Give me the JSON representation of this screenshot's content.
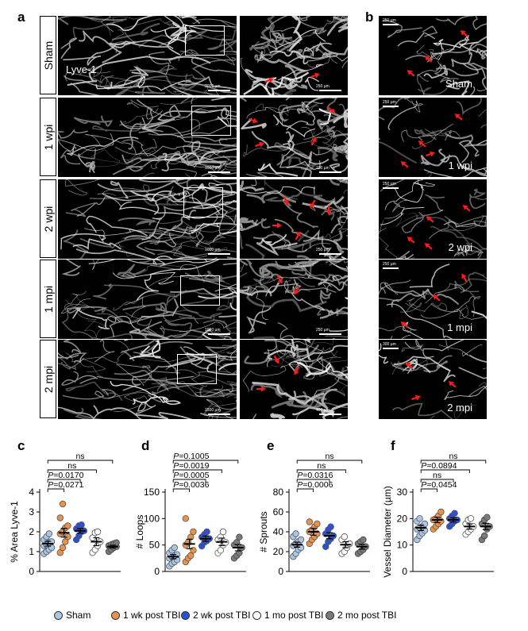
{
  "panel_letters": [
    "a",
    "b",
    "c",
    "d",
    "e",
    "f"
  ],
  "panel_a": {
    "rows": [
      {
        "label": "Sham",
        "main_scale": "1000 µm",
        "zoom_scale": "250 µm"
      },
      {
        "label": "1 wpi",
        "main_scale": "1000 µm",
        "zoom_scale": "100 µm"
      },
      {
        "label": "2 wpi",
        "main_scale": "1000 µm",
        "zoom_scale": "250 µm"
      },
      {
        "label": "1 mpi",
        "main_scale": "1000 µm",
        "zoom_scale": "250 µm"
      },
      {
        "label": "2 mpi",
        "main_scale": "1500 µm",
        "zoom_scale": "400 µm"
      }
    ],
    "stain_label": "Lyve-1"
  },
  "panel_b": {
    "images": [
      {
        "label": "Sham",
        "scale": "250 µm"
      },
      {
        "label": "1 wpi",
        "scale": "250 µm"
      },
      {
        "label": "2 wpi",
        "scale": "250 µm"
      },
      {
        "label": "1 mpi",
        "scale": "250 µm"
      },
      {
        "label": "2 mpi",
        "scale": "300 µm"
      }
    ]
  },
  "groups": [
    "Sham",
    "1 wk post TBI",
    "2 wk post TBI",
    "1 mo post TBI",
    "2 mo post TBI"
  ],
  "group_colors": [
    "#a9c6e8",
    "#e8924a",
    "#2d4fd6",
    "#ffffff",
    "#7a7a7a"
  ],
  "chart_data": [
    {
      "type": "scatter",
      "panel": "c",
      "ylabel": "% Area Lyve-1",
      "ylim": [
        0,
        4
      ],
      "yticks": [
        0,
        1,
        2,
        3,
        4
      ],
      "categories": [
        "Sham",
        "1 wk post TBI",
        "2 wk post TBI",
        "1 mo post TBI",
        "2 mo post TBI"
      ],
      "means": [
        1.4,
        1.95,
        2.05,
        1.5,
        1.25
      ],
      "sems": [
        0.12,
        0.22,
        0.12,
        0.2,
        0.07
      ],
      "points": [
        [
          0.9,
          1.0,
          1.1,
          1.2,
          1.3,
          1.35,
          1.45,
          1.5,
          1.6,
          1.75,
          1.9
        ],
        [
          0.95,
          1.2,
          1.5,
          1.75,
          1.9,
          2.0,
          2.2,
          2.3,
          2.7,
          3.4
        ],
        [
          1.6,
          1.8,
          2.0,
          2.05,
          2.15,
          2.3,
          2.35
        ],
        [
          0.95,
          1.1,
          1.3,
          1.5,
          1.7,
          1.95,
          2.0
        ],
        [
          1.0,
          1.1,
          1.2,
          1.25,
          1.3,
          1.35,
          1.4,
          1.45
        ]
      ],
      "comparisons": [
        {
          "label": "P=0.0271",
          "from": 0,
          "to": 1
        },
        {
          "label": "P=0.0170",
          "from": 0,
          "to": 2
        },
        {
          "label": "ns",
          "from": 0,
          "to": 3
        },
        {
          "label": "ns",
          "from": 0,
          "to": 4
        }
      ]
    },
    {
      "type": "scatter",
      "panel": "d",
      "ylabel": "# Loops",
      "ylim": [
        0,
        150
      ],
      "yticks": [
        0,
        50,
        100,
        150
      ],
      "categories": [
        "Sham",
        "1 wk post TBI",
        "2 wk post TBI",
        "1 mo post TBI",
        "2 mo post TBI"
      ],
      "means": [
        28,
        52,
        62,
        56,
        45
      ],
      "sems": [
        4,
        9,
        5,
        7,
        6
      ],
      "points": [
        [
          10,
          15,
          18,
          22,
          25,
          28,
          30,
          32,
          35,
          40,
          45
        ],
        [
          18,
          25,
          30,
          40,
          50,
          55,
          65,
          75,
          100
        ],
        [
          48,
          55,
          58,
          62,
          65,
          70,
          75
        ],
        [
          35,
          40,
          50,
          55,
          60,
          65,
          75
        ],
        [
          25,
          30,
          35,
          45,
          50,
          55,
          65
        ]
      ],
      "comparisons": [
        {
          "label": "P=0.0036",
          "from": 0,
          "to": 1
        },
        {
          "label": "P=0.0005",
          "from": 0,
          "to": 2
        },
        {
          "label": "P=0.0019",
          "from": 0,
          "to": 3
        },
        {
          "label": "P=0.1005",
          "from": 0,
          "to": 4
        }
      ]
    },
    {
      "type": "scatter",
      "panel": "e",
      "ylabel": "# Sprouts",
      "ylim": [
        0,
        80
      ],
      "yticks": [
        0,
        20,
        40,
        60,
        80
      ],
      "categories": [
        "Sham",
        "1 wk post TBI",
        "2 wk post TBI",
        "1 mo post TBI",
        "2 mo post TBI"
      ],
      "means": [
        27,
        40,
        36,
        27,
        25
      ],
      "sems": [
        2.5,
        3.5,
        3,
        3,
        2.5
      ],
      "points": [
        [
          15,
          18,
          22,
          24,
          26,
          28,
          30,
          32,
          35,
          38
        ],
        [
          28,
          32,
          35,
          38,
          40,
          42,
          45,
          48,
          50
        ],
        [
          25,
          30,
          33,
          36,
          38,
          42,
          45
        ],
        [
          18,
          20,
          24,
          28,
          32,
          35
        ],
        [
          18,
          20,
          22,
          25,
          28,
          30,
          32
        ]
      ],
      "comparisons": [
        {
          "label": "P=0.0006",
          "from": 0,
          "to": 1
        },
        {
          "label": "P=0.0316",
          "from": 0,
          "to": 2
        },
        {
          "label": "ns",
          "from": 0,
          "to": 3
        },
        {
          "label": "ns",
          "from": 0,
          "to": 4
        }
      ]
    },
    {
      "type": "scatter",
      "panel": "f",
      "ylabel": "Vessel Diameter (µm)",
      "ylim": [
        0,
        30
      ],
      "yticks": [
        0,
        10,
        20,
        30
      ],
      "categories": [
        "Sham",
        "1 wk post TBI",
        "2 wk post TBI",
        "1 mo post TBI",
        "2 mo post TBI"
      ],
      "means": [
        16.5,
        19.5,
        19.5,
        17,
        17
      ],
      "sems": [
        1,
        1,
        0.8,
        1,
        1.2
      ],
      "points": [
        [
          12,
          13.5,
          14.5,
          15.5,
          16,
          16.5,
          17,
          18,
          19,
          20
        ],
        [
          16,
          17,
          18,
          19,
          19.5,
          20,
          21,
          22.5
        ],
        [
          17,
          18,
          19,
          19.5,
          20,
          21,
          22
        ],
        [
          14,
          15,
          16,
          17,
          18,
          19.5,
          20
        ],
        [
          12,
          13.5,
          16,
          17,
          18,
          19.5,
          20.5
        ]
      ],
      "comparisons": [
        {
          "label": "P=0.0454",
          "from": 0,
          "to": 1
        },
        {
          "label": "ns",
          "from": 0,
          "to": 2
        },
        {
          "label": "P=0.0894",
          "from": 0,
          "to": 3
        },
        {
          "label": "ns",
          "from": 0,
          "to": 4
        }
      ]
    }
  ]
}
